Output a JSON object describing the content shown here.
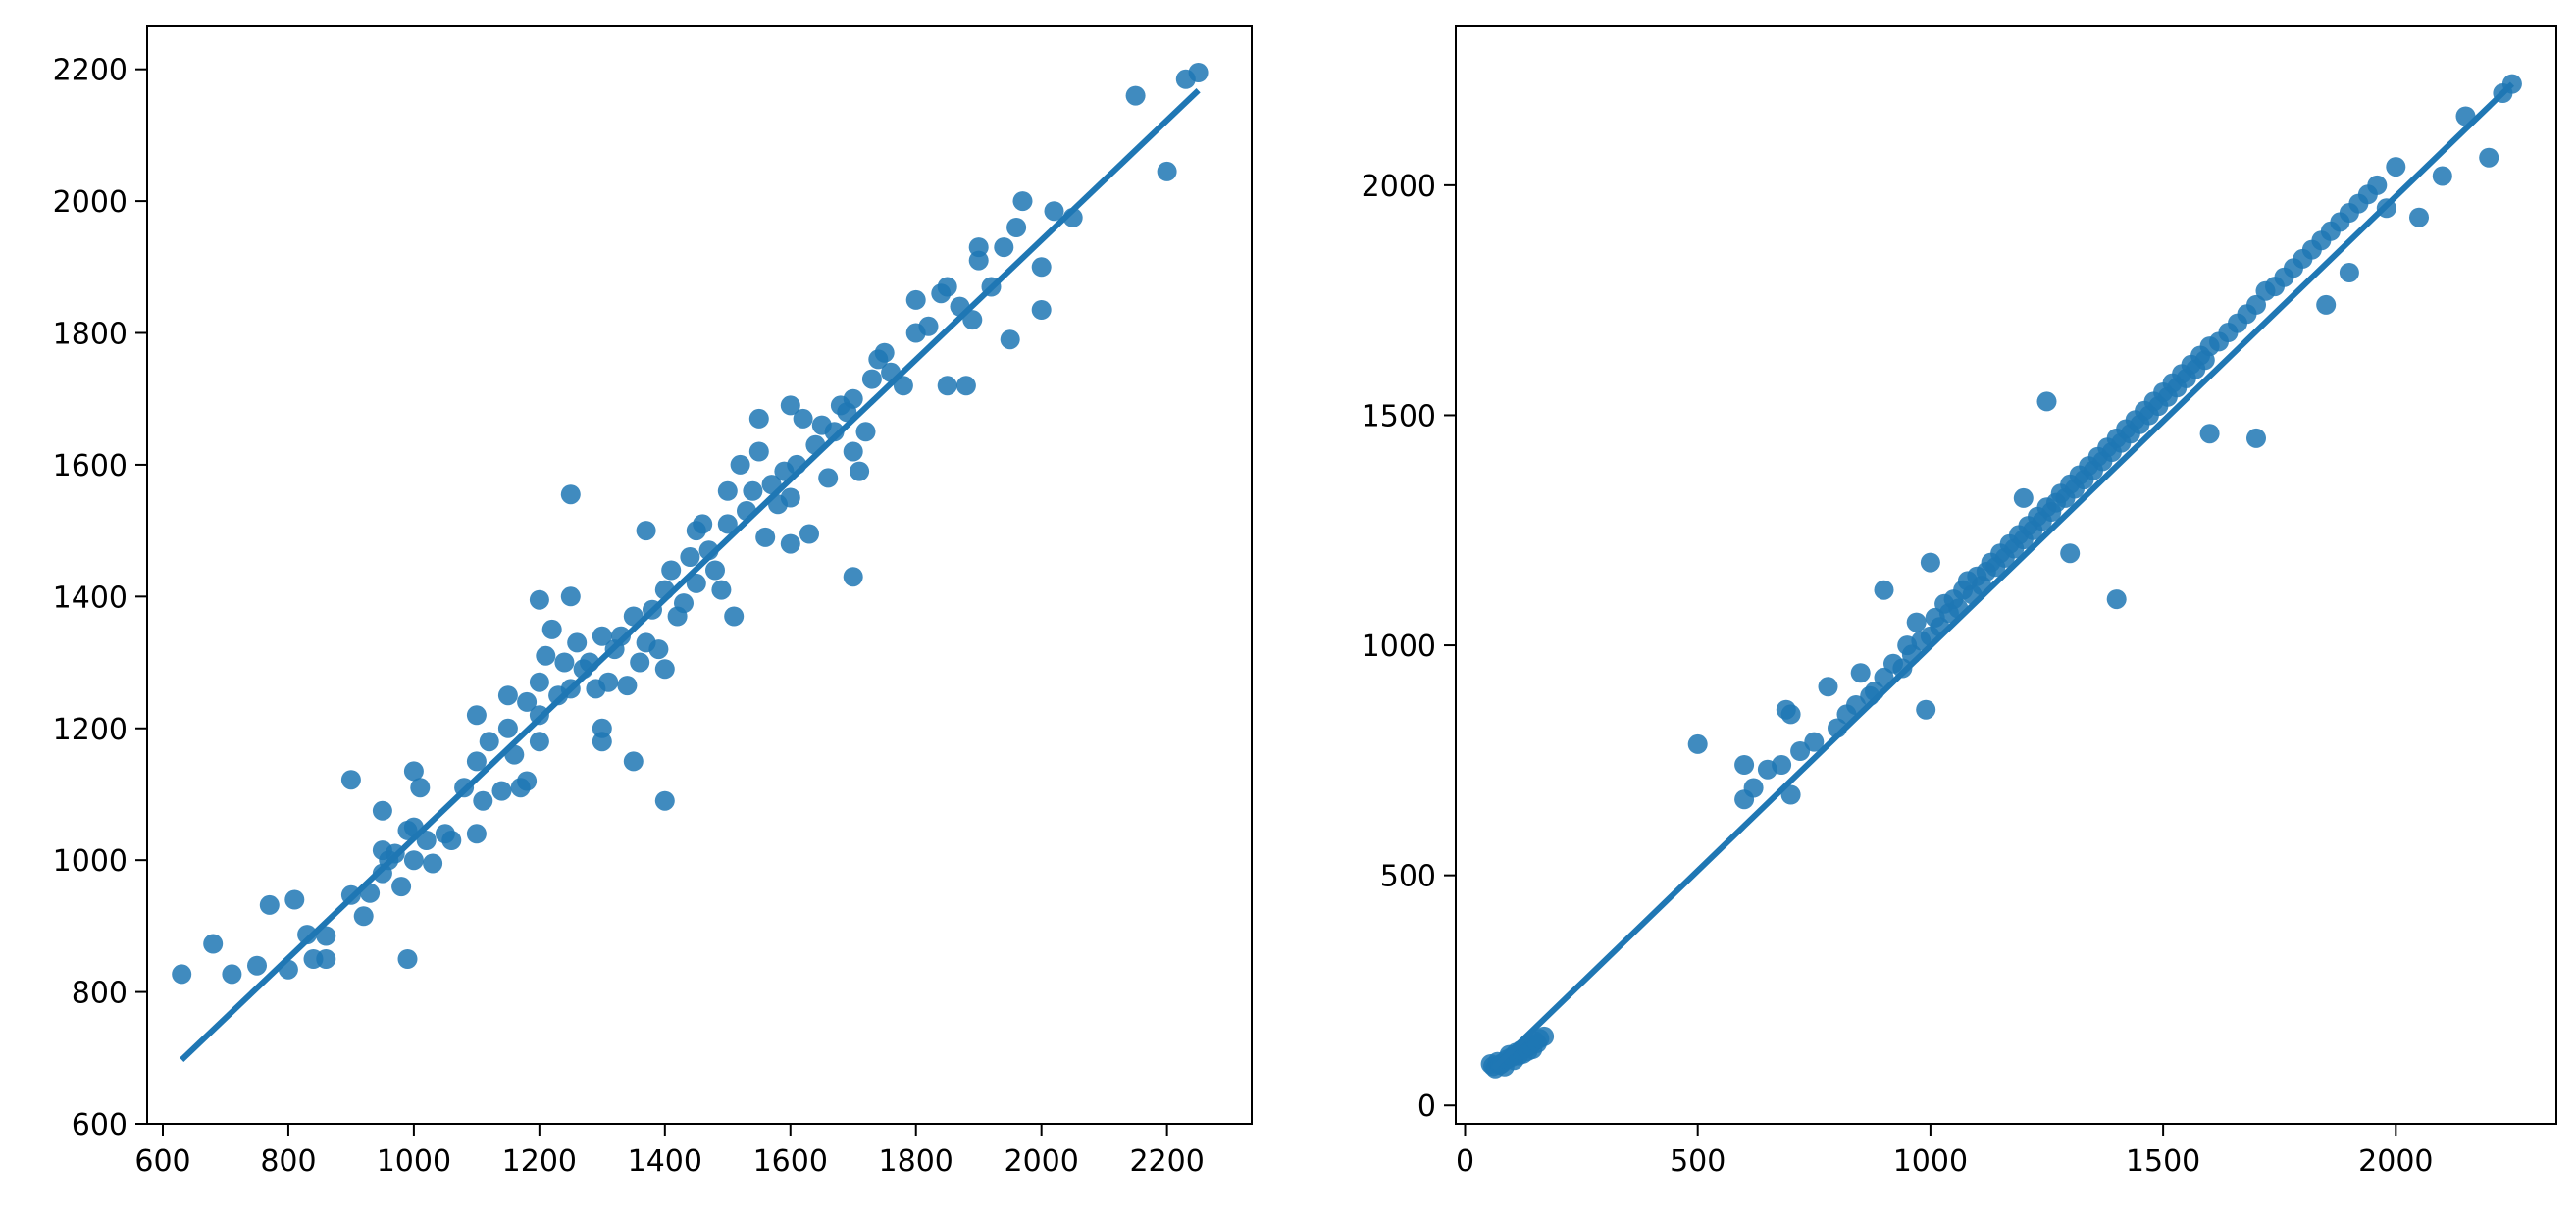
{
  "chart_data": [
    {
      "type": "scatter",
      "title": "",
      "xlabel": "",
      "ylabel": "",
      "xlim": [
        575,
        2335
      ],
      "ylim": [
        600,
        2265
      ],
      "xticks": [
        600,
        800,
        1000,
        1200,
        1400,
        1600,
        1800,
        2000,
        2200
      ],
      "yticks": [
        600,
        800,
        1000,
        1200,
        1400,
        1600,
        1800,
        2000,
        2200
      ],
      "grid": false,
      "legend": "none",
      "color": "#1f77b4",
      "regression_line": {
        "x": [
          630,
          2250
        ],
        "y": [
          697,
          2168
        ]
      },
      "points": [
        [
          630,
          827
        ],
        [
          680,
          873
        ],
        [
          710,
          827
        ],
        [
          750,
          840
        ],
        [
          770,
          932
        ],
        [
          800,
          834
        ],
        [
          810,
          940
        ],
        [
          830,
          887
        ],
        [
          840,
          850
        ],
        [
          860,
          850
        ],
        [
          860,
          885
        ],
        [
          900,
          947
        ],
        [
          900,
          1122
        ],
        [
          920,
          915
        ],
        [
          930,
          950
        ],
        [
          950,
          980
        ],
        [
          950,
          1015
        ],
        [
          950,
          1075
        ],
        [
          960,
          1000
        ],
        [
          970,
          1010
        ],
        [
          980,
          960
        ],
        [
          990,
          1045
        ],
        [
          990,
          850
        ],
        [
          1000,
          1000
        ],
        [
          1000,
          1050
        ],
        [
          1000,
          1135
        ],
        [
          1010,
          1110
        ],
        [
          1020,
          1030
        ],
        [
          1030,
          995
        ],
        [
          1050,
          1040
        ],
        [
          1060,
          1030
        ],
        [
          1080,
          1110
        ],
        [
          1100,
          1150
        ],
        [
          1100,
          1040
        ],
        [
          1100,
          1220
        ],
        [
          1110,
          1090
        ],
        [
          1120,
          1180
        ],
        [
          1140,
          1105
        ],
        [
          1150,
          1200
        ],
        [
          1150,
          1250
        ],
        [
          1160,
          1160
        ],
        [
          1170,
          1110
        ],
        [
          1180,
          1240
        ],
        [
          1180,
          1120
        ],
        [
          1200,
          1180
        ],
        [
          1200,
          1220
        ],
        [
          1200,
          1270
        ],
        [
          1200,
          1395
        ],
        [
          1210,
          1310
        ],
        [
          1220,
          1350
        ],
        [
          1230,
          1250
        ],
        [
          1240,
          1300
        ],
        [
          1250,
          1260
        ],
        [
          1250,
          1400
        ],
        [
          1250,
          1555
        ],
        [
          1260,
          1330
        ],
        [
          1270,
          1290
        ],
        [
          1280,
          1300
        ],
        [
          1290,
          1260
        ],
        [
          1300,
          1340
        ],
        [
          1300,
          1180
        ],
        [
          1300,
          1200
        ],
        [
          1310,
          1270
        ],
        [
          1320,
          1320
        ],
        [
          1330,
          1340
        ],
        [
          1340,
          1265
        ],
        [
          1350,
          1370
        ],
        [
          1350,
          1150
        ],
        [
          1360,
          1300
        ],
        [
          1370,
          1330
        ],
        [
          1370,
          1500
        ],
        [
          1380,
          1380
        ],
        [
          1390,
          1320
        ],
        [
          1400,
          1290
        ],
        [
          1400,
          1410
        ],
        [
          1400,
          1090
        ],
        [
          1410,
          1440
        ],
        [
          1420,
          1370
        ],
        [
          1430,
          1390
        ],
        [
          1440,
          1460
        ],
        [
          1450,
          1500
        ],
        [
          1450,
          1420
        ],
        [
          1460,
          1510
        ],
        [
          1470,
          1470
        ],
        [
          1480,
          1440
        ],
        [
          1490,
          1410
        ],
        [
          1500,
          1560
        ],
        [
          1500,
          1510
        ],
        [
          1510,
          1370
        ],
        [
          1520,
          1600
        ],
        [
          1530,
          1530
        ],
        [
          1540,
          1560
        ],
        [
          1550,
          1620
        ],
        [
          1550,
          1670
        ],
        [
          1560,
          1490
        ],
        [
          1570,
          1570
        ],
        [
          1580,
          1540
        ],
        [
          1590,
          1590
        ],
        [
          1600,
          1550
        ],
        [
          1600,
          1480
        ],
        [
          1600,
          1690
        ],
        [
          1610,
          1600
        ],
        [
          1620,
          1670
        ],
        [
          1630,
          1495
        ],
        [
          1640,
          1630
        ],
        [
          1650,
          1660
        ],
        [
          1660,
          1580
        ],
        [
          1670,
          1650
        ],
        [
          1680,
          1690
        ],
        [
          1690,
          1680
        ],
        [
          1700,
          1700
        ],
        [
          1700,
          1430
        ],
        [
          1700,
          1620
        ],
        [
          1710,
          1590
        ],
        [
          1720,
          1650
        ],
        [
          1730,
          1730
        ],
        [
          1740,
          1760
        ],
        [
          1750,
          1770
        ],
        [
          1760,
          1740
        ],
        [
          1780,
          1720
        ],
        [
          1800,
          1800
        ],
        [
          1800,
          1850
        ],
        [
          1820,
          1810
        ],
        [
          1840,
          1860
        ],
        [
          1850,
          1720
        ],
        [
          1850,
          1870
        ],
        [
          1870,
          1840
        ],
        [
          1880,
          1720
        ],
        [
          1890,
          1820
        ],
        [
          1900,
          1910
        ],
        [
          1900,
          1930
        ],
        [
          1920,
          1870
        ],
        [
          1940,
          1930
        ],
        [
          1950,
          1790
        ],
        [
          1960,
          1960
        ],
        [
          1970,
          2000
        ],
        [
          2000,
          1900
        ],
        [
          2000,
          1835
        ],
        [
          2020,
          1985
        ],
        [
          2050,
          1975
        ],
        [
          2150,
          2160
        ],
        [
          2200,
          2045
        ],
        [
          2230,
          2185
        ],
        [
          2250,
          2195
        ]
      ]
    },
    {
      "type": "scatter",
      "title": "",
      "xlabel": "",
      "ylabel": "",
      "xlim": [
        -20,
        2345
      ],
      "ylim": [
        -40,
        2345
      ],
      "xticks": [
        0,
        500,
        1000,
        1500,
        2000
      ],
      "yticks": [
        0,
        500,
        1000,
        1500,
        2000
      ],
      "grid": false,
      "legend": "none",
      "color": "#1f77b4",
      "regression_line": {
        "x": [
          60,
          2250
        ],
        "y": [
          80,
          2220
        ]
      },
      "points": [
        [
          55,
          90
        ],
        [
          60,
          85
        ],
        [
          65,
          80
        ],
        [
          70,
          95
        ],
        [
          75,
          88
        ],
        [
          80,
          92
        ],
        [
          85,
          84
        ],
        [
          90,
          100
        ],
        [
          95,
          110
        ],
        [
          100,
          105
        ],
        [
          105,
          98
        ],
        [
          110,
          115
        ],
        [
          115,
          108
        ],
        [
          120,
          120
        ],
        [
          125,
          112
        ],
        [
          130,
          125
        ],
        [
          135,
          118
        ],
        [
          140,
          130
        ],
        [
          145,
          122
        ],
        [
          150,
          140
        ],
        [
          155,
          135
        ],
        [
          160,
          145
        ],
        [
          170,
          150
        ],
        [
          500,
          785
        ],
        [
          600,
          740
        ],
        [
          600,
          665
        ],
        [
          620,
          690
        ],
        [
          650,
          730
        ],
        [
          680,
          740
        ],
        [
          690,
          860
        ],
        [
          700,
          850
        ],
        [
          700,
          675
        ],
        [
          720,
          770
        ],
        [
          750,
          790
        ],
        [
          780,
          910
        ],
        [
          800,
          820
        ],
        [
          820,
          850
        ],
        [
          840,
          870
        ],
        [
          850,
          940
        ],
        [
          870,
          890
        ],
        [
          880,
          900
        ],
        [
          900,
          930
        ],
        [
          900,
          1120
        ],
        [
          920,
          960
        ],
        [
          940,
          950
        ],
        [
          950,
          1000
        ],
        [
          960,
          980
        ],
        [
          970,
          1050
        ],
        [
          980,
          1010
        ],
        [
          990,
          860
        ],
        [
          1000,
          1020
        ],
        [
          1000,
          1180
        ],
        [
          1010,
          1060
        ],
        [
          1020,
          1040
        ],
        [
          1030,
          1090
        ],
        [
          1040,
          1070
        ],
        [
          1050,
          1100
        ],
        [
          1060,
          1080
        ],
        [
          1070,
          1120
        ],
        [
          1080,
          1140
        ],
        [
          1090,
          1110
        ],
        [
          1100,
          1150
        ],
        [
          1110,
          1130
        ],
        [
          1120,
          1160
        ],
        [
          1130,
          1180
        ],
        [
          1140,
          1170
        ],
        [
          1150,
          1200
        ],
        [
          1160,
          1190
        ],
        [
          1170,
          1220
        ],
        [
          1180,
          1210
        ],
        [
          1190,
          1240
        ],
        [
          1200,
          1230
        ],
        [
          1200,
          1320
        ],
        [
          1210,
          1260
        ],
        [
          1220,
          1250
        ],
        [
          1230,
          1280
        ],
        [
          1240,
          1270
        ],
        [
          1250,
          1300
        ],
        [
          1250,
          1530
        ],
        [
          1260,
          1290
        ],
        [
          1270,
          1310
        ],
        [
          1280,
          1330
        ],
        [
          1290,
          1320
        ],
        [
          1300,
          1350
        ],
        [
          1300,
          1200
        ],
        [
          1310,
          1340
        ],
        [
          1320,
          1370
        ],
        [
          1330,
          1360
        ],
        [
          1340,
          1390
        ],
        [
          1350,
          1380
        ],
        [
          1360,
          1410
        ],
        [
          1370,
          1400
        ],
        [
          1380,
          1430
        ],
        [
          1390,
          1420
        ],
        [
          1400,
          1450
        ],
        [
          1400,
          1100
        ],
        [
          1410,
          1440
        ],
        [
          1420,
          1470
        ],
        [
          1430,
          1460
        ],
        [
          1440,
          1490
        ],
        [
          1450,
          1480
        ],
        [
          1460,
          1510
        ],
        [
          1470,
          1500
        ],
        [
          1480,
          1530
        ],
        [
          1490,
          1520
        ],
        [
          1500,
          1550
        ],
        [
          1510,
          1540
        ],
        [
          1520,
          1570
        ],
        [
          1530,
          1560
        ],
        [
          1540,
          1590
        ],
        [
          1550,
          1580
        ],
        [
          1560,
          1610
        ],
        [
          1570,
          1600
        ],
        [
          1580,
          1630
        ],
        [
          1590,
          1620
        ],
        [
          1600,
          1650
        ],
        [
          1600,
          1460
        ],
        [
          1620,
          1660
        ],
        [
          1640,
          1680
        ],
        [
          1660,
          1700
        ],
        [
          1680,
          1720
        ],
        [
          1700,
          1740
        ],
        [
          1700,
          1450
        ],
        [
          1720,
          1770
        ],
        [
          1740,
          1780
        ],
        [
          1760,
          1800
        ],
        [
          1780,
          1820
        ],
        [
          1800,
          1840
        ],
        [
          1820,
          1860
        ],
        [
          1840,
          1880
        ],
        [
          1850,
          1740
        ],
        [
          1860,
          1900
        ],
        [
          1880,
          1920
        ],
        [
          1900,
          1940
        ],
        [
          1900,
          1810
        ],
        [
          1920,
          1960
        ],
        [
          1940,
          1980
        ],
        [
          1960,
          2000
        ],
        [
          1980,
          1950
        ],
        [
          2000,
          2040
        ],
        [
          2050,
          1930
        ],
        [
          2100,
          2020
        ],
        [
          2150,
          2150
        ],
        [
          2200,
          2060
        ],
        [
          2230,
          2200
        ],
        [
          2250,
          2220
        ]
      ]
    }
  ]
}
